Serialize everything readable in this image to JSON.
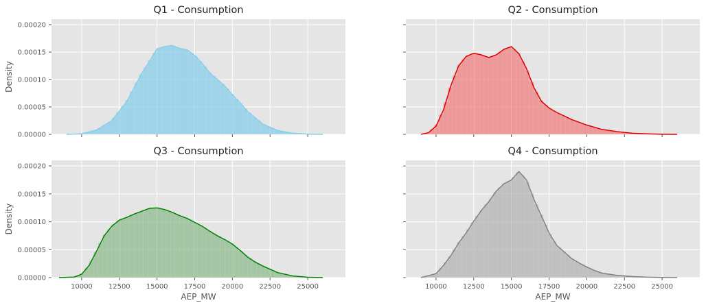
{
  "figure": {
    "background": "#ffffff",
    "panel_background": "#e5e5e5",
    "grid_color": "#ffffff"
  },
  "chart_data": [
    {
      "type": "area",
      "title": "Q1 - Consumption",
      "xlabel": "",
      "ylabel": "Density",
      "color": "#87ceeb",
      "grid": true,
      "xlim": [
        8000,
        27500
      ],
      "ylim": [
        0,
        0.00021
      ],
      "xticks": [
        10000,
        12500,
        15000,
        17500,
        20000,
        22500,
        25000
      ],
      "xtick_labels_shown": false,
      "yticks": [
        0,
        5e-05,
        0.0001,
        0.00015,
        0.0002
      ],
      "ytick_labels": [
        "0.00000",
        "0.00005",
        "0.00010",
        "0.00015",
        "0.00020"
      ],
      "ytick_labels_shown": true,
      "bin_width": 300,
      "x": [
        9000,
        10000,
        11000,
        12000,
        13000,
        14000,
        14500,
        15000,
        15500,
        16000,
        16500,
        17000,
        17500,
        18000,
        18500,
        19000,
        19500,
        20000,
        20500,
        21000,
        22000,
        23000,
        24000,
        25000,
        26000
      ],
      "values": [
        0.0,
        1e-06,
        8e-06,
        2.5e-05,
        6e-05,
        0.000112,
        0.000133,
        0.000156,
        0.00016,
        0.000162,
        0.000157,
        0.000154,
        0.000144,
        0.000129,
        0.000112,
        0.0001,
        8.8e-05,
        7.2e-05,
        5.8e-05,
        4.2e-05,
        1.9e-05,
        7e-06,
        2e-06,
        5e-07,
        0.0
      ]
    },
    {
      "type": "area",
      "title": "Q2 - Consumption",
      "xlabel": "",
      "ylabel": "",
      "color": "#f08080",
      "line_color": "#dd0000",
      "grid": true,
      "xlim": [
        8000,
        27500
      ],
      "ylim": [
        0,
        0.00021
      ],
      "xticks": [
        10000,
        12500,
        15000,
        17500,
        20000,
        22500,
        25000
      ],
      "xtick_labels_shown": false,
      "yticks": [
        0,
        5e-05,
        0.0001,
        0.00015,
        0.0002
      ],
      "ytick_labels_shown": false,
      "bin_width": 300,
      "x": [
        9000,
        9500,
        10000,
        10500,
        11000,
        11500,
        12000,
        12500,
        13000,
        13500,
        14000,
        14500,
        15000,
        15500,
        16000,
        16500,
        17000,
        17500,
        18000,
        19000,
        20000,
        21000,
        22000,
        23000,
        24000,
        25000,
        26000
      ],
      "values": [
        0.0,
        3e-06,
        1.5e-05,
        4.5e-05,
        9e-05,
        0.000125,
        0.000142,
        0.000148,
        0.000145,
        0.00014,
        0.000145,
        0.000155,
        0.00016,
        0.000147,
        0.00012,
        8.5e-05,
        6e-05,
        4.8e-05,
        4e-05,
        2.7e-05,
        1.7e-05,
        9e-06,
        5e-06,
        2e-06,
        1e-06,
        2e-07,
        0.0
      ]
    },
    {
      "type": "area",
      "title": "Q3 - Consumption",
      "xlabel": "AEP_MW",
      "ylabel": "Density",
      "color": "#8fbc8f",
      "line_color": "#008000",
      "grid": true,
      "xlim": [
        8000,
        27500
      ],
      "ylim": [
        0,
        0.00021
      ],
      "xticks": [
        10000,
        12500,
        15000,
        17500,
        20000,
        22500,
        25000
      ],
      "xtick_labels": [
        "10000",
        "12500",
        "15000",
        "17500",
        "20000",
        "22500",
        "25000"
      ],
      "xtick_labels_shown": true,
      "yticks": [
        0,
        5e-05,
        0.0001,
        0.00015,
        0.0002
      ],
      "ytick_labels": [
        "0.00000",
        "0.00005",
        "0.00010",
        "0.00015",
        "0.00020"
      ],
      "ytick_labels_shown": true,
      "bin_width": 300,
      "x": [
        8500,
        9500,
        10000,
        10500,
        11000,
        11500,
        12000,
        12500,
        13000,
        13500,
        14000,
        14500,
        15000,
        15500,
        16000,
        16500,
        17000,
        17500,
        18000,
        18500,
        19000,
        19500,
        20000,
        20500,
        21000,
        21500,
        22000,
        22500,
        23000,
        24000,
        25000,
        26000
      ],
      "values": [
        0.0,
        1e-06,
        6e-06,
        2.2e-05,
        4.8e-05,
        7.5e-05,
        9.2e-05,
        0.000103,
        0.000108,
        0.000114,
        0.000119,
        0.000124,
        0.000125,
        0.000122,
        0.000117,
        0.000111,
        0.000106,
        9.9e-05,
        9.2e-05,
        8.3e-05,
        7.5e-05,
        6.8e-05,
        6e-05,
        4.9e-05,
        3.7e-05,
        2.8e-05,
        2.1e-05,
        1.5e-05,
        9e-06,
        3e-06,
        6e-07,
        0.0
      ]
    },
    {
      "type": "area",
      "title": "Q4 - Consumption",
      "xlabel": "AEP_MW",
      "ylabel": "",
      "color": "#b4b4b4",
      "line_color": "#808080",
      "grid": true,
      "xlim": [
        8000,
        27500
      ],
      "ylim": [
        0,
        0.00021
      ],
      "xticks": [
        10000,
        12500,
        15000,
        17500,
        20000,
        22500,
        25000
      ],
      "xtick_labels": [
        "10000",
        "12500",
        "15000",
        "17500",
        "20000",
        "22500",
        "25000"
      ],
      "xtick_labels_shown": true,
      "yticks": [
        0,
        5e-05,
        0.0001,
        0.00015,
        0.0002
      ],
      "ytick_labels_shown": false,
      "bin_width": 300,
      "x": [
        9000,
        10000,
        10500,
        11000,
        11500,
        12000,
        12500,
        13000,
        13500,
        14000,
        14500,
        15000,
        15500,
        16000,
        16500,
        17000,
        17500,
        18000,
        18500,
        19000,
        19500,
        20000,
        20500,
        21000,
        22000,
        23000,
        24000,
        25000,
        26000
      ],
      "values": [
        0.0,
        7e-06,
        2.2e-05,
        4e-05,
        6.2e-05,
        8e-05,
        0.000101,
        0.00012,
        0.000136,
        0.000155,
        0.000168,
        0.000175,
        0.00019,
        0.000175,
        0.00014,
        0.00011,
        8e-05,
        5.8e-05,
        4.6e-05,
        3.4e-05,
        2.6e-05,
        1.9e-05,
        1.3e-05,
        8e-06,
        4e-06,
        2e-06,
        8e-07,
        2e-07,
        0.0
      ]
    }
  ]
}
